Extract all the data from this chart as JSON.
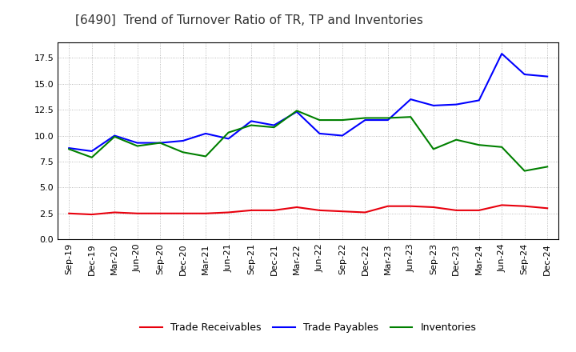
{
  "title": "[6490]  Trend of Turnover Ratio of TR, TP and Inventories",
  "x_labels": [
    "Sep-19",
    "Dec-19",
    "Mar-20",
    "Jun-20",
    "Sep-20",
    "Dec-20",
    "Mar-21",
    "Jun-21",
    "Sep-21",
    "Dec-21",
    "Mar-22",
    "Jun-22",
    "Sep-22",
    "Dec-22",
    "Mar-23",
    "Jun-23",
    "Sep-23",
    "Dec-23",
    "Mar-24",
    "Jun-24",
    "Sep-24",
    "Dec-24"
  ],
  "trade_receivables": [
    2.5,
    2.4,
    2.6,
    2.5,
    2.5,
    2.5,
    2.5,
    2.6,
    2.8,
    2.8,
    3.1,
    2.8,
    2.7,
    2.6,
    3.2,
    3.2,
    3.1,
    2.8,
    2.8,
    3.3,
    3.2,
    3.0
  ],
  "trade_payables": [
    8.8,
    8.5,
    10.0,
    9.3,
    9.3,
    9.5,
    10.2,
    9.7,
    11.4,
    11.0,
    12.3,
    10.2,
    10.0,
    11.5,
    11.5,
    13.5,
    12.9,
    13.0,
    13.4,
    17.9,
    15.9,
    15.7
  ],
  "inventories": [
    8.7,
    7.9,
    9.9,
    9.0,
    9.3,
    8.4,
    8.0,
    10.3,
    11.0,
    10.8,
    12.4,
    11.5,
    11.5,
    11.7,
    11.7,
    11.8,
    8.7,
    9.6,
    9.1,
    8.9,
    6.6,
    7.0
  ],
  "ylim": [
    0,
    19
  ],
  "yticks": [
    0.0,
    2.5,
    5.0,
    7.5,
    10.0,
    12.5,
    15.0,
    17.5
  ],
  "color_tr": "#e8000d",
  "color_tp": "#0000ff",
  "color_inv": "#008000",
  "bg_color": "#ffffff",
  "plot_bg_color": "#ffffff",
  "grid_color": "#aaaaaa",
  "title_fontsize": 11,
  "legend_fontsize": 9,
  "tick_fontsize": 8,
  "linewidth": 1.5
}
